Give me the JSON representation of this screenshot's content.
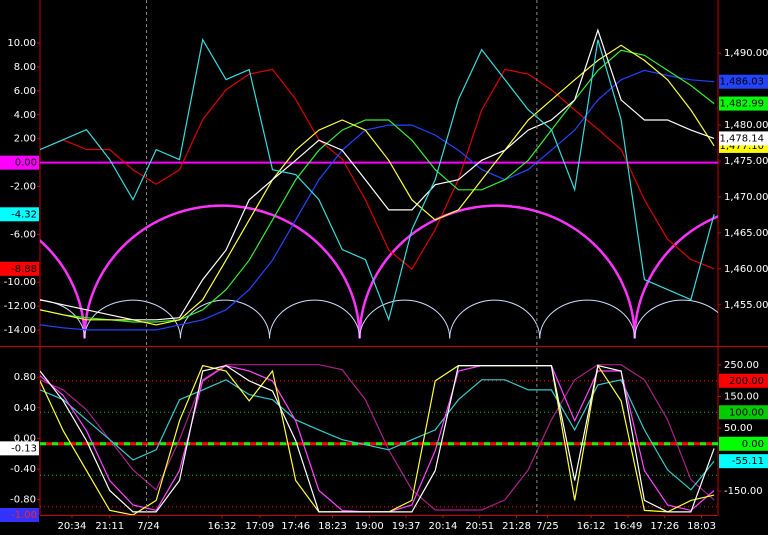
{
  "chart_data": [
    {
      "type": "line",
      "xlim": [
        0,
        700
      ],
      "x": [
        0,
        24,
        48,
        72,
        96,
        120,
        144,
        168,
        192,
        216,
        240,
        264,
        288,
        312,
        336,
        360,
        384,
        408,
        432,
        456,
        480,
        504,
        528,
        552,
        576,
        600,
        624,
        648,
        672,
        696
      ],
      "ylim": [
        -15.25,
        13.6
      ],
      "y2lim": [
        1449.4,
        1497.4
      ],
      "yticks": [
        {
          "value": 10,
          "label": "10.00"
        },
        {
          "value": 8,
          "label": "8.00"
        },
        {
          "value": 6,
          "label": "6.00"
        },
        {
          "value": 4,
          "label": "4.00"
        },
        {
          "value": 2,
          "label": "2.00"
        },
        {
          "value": -2,
          "label": "-2.00"
        },
        {
          "value": -6,
          "label": "-6.00"
        },
        {
          "value": -10,
          "label": "-10.00"
        },
        {
          "value": -12,
          "label": "-12.00"
        },
        {
          "value": -14,
          "label": "-14.00"
        }
      ],
      "y2ticks": [
        {
          "value": 1490,
          "label": "1,490.00"
        },
        {
          "value": 1480,
          "label": "1,480.00"
        },
        {
          "value": 1475,
          "label": "1,475.00"
        },
        {
          "value": 1470,
          "label": "1,470.00"
        },
        {
          "value": 1465,
          "label": "1,465.00"
        },
        {
          "value": 1460,
          "label": "1,460.00"
        },
        {
          "value": 1455,
          "label": "1,455.00"
        }
      ],
      "hlines": [
        {
          "value": 0,
          "color": "#ff00ff",
          "line_width": 2
        }
      ],
      "cycles": [
        {
          "color": "#ff33ff",
          "line_width": 2.5,
          "troughs": [
            46,
            330,
            614
          ],
          "peak": -3.6,
          "floor": -14.7
        },
        {
          "color": "#ccddff",
          "line_width": 1,
          "troughs": [
            46,
            145,
            237,
            330,
            423,
            516,
            614
          ],
          "peak": -11.5,
          "floor": -14.7
        }
      ],
      "series": [
        {
          "color": "#dd0000",
          "axis": "y",
          "values": [
            1.1,
            1.9,
            1.1,
            1.1,
            -0.6,
            -1.8,
            -0.6,
            3.6,
            6.1,
            7.4,
            7.8,
            5.3,
            1.9,
            0.3,
            -3.1,
            -7.3,
            -8.9,
            -5.6,
            -1.4,
            4.4,
            7.8,
            7.4,
            6.1,
            4.4,
            2.8,
            1.1,
            -3.1,
            -6.4,
            -8.1,
            -8.88
          ]
        },
        {
          "color": "#2244ff",
          "axis": "y2",
          "values": [
            1452.2,
            1451.8,
            1451.5,
            1451.5,
            1451.5,
            1451.5,
            1452.2,
            1452.9,
            1454.3,
            1457.1,
            1461.2,
            1466.8,
            1472.4,
            1476.5,
            1479.3,
            1480.0,
            1480.0,
            1478.6,
            1476.5,
            1473.8,
            1472.4,
            1473.8,
            1476.5,
            1479.3,
            1483.5,
            1486.3,
            1487.6,
            1486.9,
            1486.3,
            1486.03
          ]
        },
        {
          "color": "#33ee33",
          "axis": "y2",
          "values": [
            1454.3,
            1453.6,
            1453.2,
            1452.9,
            1452.6,
            1452.6,
            1452.9,
            1454.3,
            1457.1,
            1461.2,
            1466.8,
            1472.4,
            1476.5,
            1479.3,
            1480.7,
            1480.7,
            1477.9,
            1473.8,
            1471.0,
            1471.0,
            1472.4,
            1475.1,
            1479.3,
            1483.5,
            1487.6,
            1490.4,
            1489.7,
            1487.6,
            1485.5,
            1482.99
          ]
        },
        {
          "color": "#ffff33",
          "axis": "y2",
          "values": [
            1454.3,
            1453.6,
            1452.9,
            1452.9,
            1452.9,
            1452.2,
            1452.9,
            1455.7,
            1461.2,
            1466.8,
            1472.4,
            1476.5,
            1479.3,
            1480.7,
            1479.3,
            1475.1,
            1469.6,
            1466.8,
            1468.2,
            1472.4,
            1476.5,
            1480.7,
            1483.5,
            1486.3,
            1489.0,
            1491.1,
            1489.0,
            1486.3,
            1482.1,
            1477.1
          ]
        },
        {
          "color": "#ffffff",
          "axis": "y2",
          "values": [
            1455.7,
            1455.0,
            1454.3,
            1453.6,
            1452.9,
            1452.9,
            1453.2,
            1458.5,
            1462.6,
            1469.6,
            1472.4,
            1475.1,
            1477.9,
            1476.5,
            1472.4,
            1468.2,
            1468.2,
            1471.7,
            1472.4,
            1475.1,
            1476.5,
            1479.3,
            1480.7,
            1483.5,
            1493.2,
            1483.5,
            1480.7,
            1480.7,
            1479.3,
            1478.14
          ]
        },
        {
          "color": "#33dddd",
          "axis": "y",
          "values": [
            1.09,
            1.92,
            2.76,
            0.25,
            -3.09,
            1.09,
            0.25,
            10.28,
            6.94,
            7.78,
            -0.59,
            -1.0,
            -3.09,
            -7.27,
            -8.11,
            -13.13,
            -5.6,
            -1.42,
            5.27,
            9.45,
            6.94,
            4.43,
            2.76,
            -2.26,
            10.28,
            3.6,
            -9.78,
            -10.62,
            -11.46,
            -4.32
          ]
        }
      ],
      "markers": [
        {
          "axis": "y",
          "value": 0,
          "label": "0.00",
          "color": "#ff00ff",
          "text_color": "#000000"
        },
        {
          "axis": "y",
          "value": -4.32,
          "label": "-4.32",
          "color": "#00ffff",
          "text_color": "#000000"
        },
        {
          "axis": "y",
          "value": -8.88,
          "label": "-8.88",
          "color": "#ff0000",
          "text_color": "#000000"
        },
        {
          "axis": "y2",
          "value": 1486.03,
          "label": "1,486.03",
          "color": "#2244ff",
          "text_color": "#000000"
        },
        {
          "axis": "y2",
          "value": 1482.99,
          "label": "1,482.99",
          "color": "#00ff00",
          "text_color": "#000000"
        },
        {
          "axis": "y2",
          "value": 1477.1,
          "label": "1,477.10",
          "color": "#ffff00",
          "text_color": "#000000"
        },
        {
          "axis": "y2",
          "value": 1478.14,
          "label": "1,478.14",
          "color": "#ffffff",
          "text_color": "#000000"
        }
      ]
    },
    {
      "type": "line",
      "xlim": [
        0,
        700
      ],
      "x": [
        0,
        24,
        48,
        72,
        96,
        120,
        144,
        168,
        192,
        216,
        240,
        264,
        288,
        312,
        336,
        360,
        384,
        408,
        432,
        456,
        480,
        504,
        528,
        552,
        576,
        600,
        624,
        648,
        672,
        696
      ],
      "ylim": [
        -1.0,
        1.18
      ],
      "y2lim": [
        -226,
        304
      ],
      "yticks": [
        {
          "value": 0.8,
          "label": "0.80"
        },
        {
          "value": 0.4,
          "label": "0.40"
        },
        {
          "value": 0,
          "label": "0.00"
        },
        {
          "value": -0.4,
          "label": "-0.40"
        },
        {
          "value": -0.8,
          "label": "-0.80"
        }
      ],
      "y2ticks": [
        {
          "value": 250,
          "label": "250.00"
        },
        {
          "value": 150,
          "label": "150.00"
        },
        {
          "value": 50,
          "label": "50.00"
        },
        {
          "value": -150,
          "label": "-150.00"
        }
      ],
      "xticks": [
        {
          "value": 33,
          "label": "20:34"
        },
        {
          "value": 72,
          "label": "21:11"
        },
        {
          "value": 112,
          "label": "7/24"
        },
        {
          "value": 188,
          "label": "16:32"
        },
        {
          "value": 227,
          "label": "17:09"
        },
        {
          "value": 264,
          "label": "17:46"
        },
        {
          "value": 302,
          "label": "18:23"
        },
        {
          "value": 340,
          "label": "19:00"
        },
        {
          "value": 378,
          "label": "19:37"
        },
        {
          "value": 416,
          "label": "20:14"
        },
        {
          "value": 454,
          "label": "20:51"
        },
        {
          "value": 492,
          "label": "21:28"
        },
        {
          "value": 524,
          "label": "7/25"
        },
        {
          "value": 569,
          "label": "16:12"
        },
        {
          "value": 607,
          "label": "16:49"
        },
        {
          "value": 645,
          "label": "17:26"
        },
        {
          "value": 683,
          "label": "18:03"
        }
      ],
      "x_separators": [
        110,
        513
      ],
      "hlines": [
        {
          "value": 200,
          "color": "#ff0000",
          "line_width": 1,
          "label": "200.00",
          "text_color": "#000000"
        },
        {
          "value": 100,
          "color": "#00cc00",
          "line_width": 1,
          "label": "100.00",
          "text_color": "#000000"
        },
        {
          "value": 0,
          "color": "#00ff00",
          "line_width": 3,
          "label": "0.00",
          "text_color": "#000000"
        },
        {
          "value": -100,
          "color": "#00cc00",
          "line_width": 1
        },
        {
          "value": -200,
          "color": "#ff0000",
          "line_width": 1
        }
      ],
      "series": [
        {
          "color": "#aa2288",
          "axis": "y2",
          "values": [
            203,
            171,
            108,
            13,
            -83,
            -146,
            13,
            203,
            251,
            251,
            251,
            251,
            251,
            235,
            140,
            -19,
            -146,
            -210,
            -210,
            -210,
            -178,
            -83,
            76,
            203,
            251,
            251,
            203,
            76,
            -114,
            -178
          ]
        },
        {
          "color": "#33cccc",
          "axis": "y2",
          "values": [
            171,
            140,
            76,
            13,
            -51,
            -19,
            140,
            171,
            203,
            156,
            140,
            76,
            44,
            13,
            -3,
            -19,
            13,
            44,
            140,
            203,
            203,
            171,
            171,
            44,
            187,
            203,
            44,
            -83,
            -146,
            -55.11
          ]
        },
        {
          "color": "#ff44ff",
          "axis": "y",
          "values": [
            0.82,
            0.56,
            0.1,
            -0.55,
            -0.87,
            -0.94,
            -0.42,
            0.75,
            0.95,
            0.88,
            0.75,
            0.23,
            -0.68,
            -0.94,
            -0.96,
            -0.96,
            -0.87,
            -0.16,
            0.88,
            0.95,
            0.95,
            0.95,
            0.95,
            0.23,
            0.88,
            0.88,
            -0.42,
            -0.87,
            -0.94,
            -0.68
          ]
        },
        {
          "color": "#ffff33",
          "axis": "y",
          "values": [
            0.75,
            0.1,
            -0.42,
            -0.94,
            -1.0,
            -0.81,
            0.23,
            0.95,
            0.88,
            0.49,
            0.88,
            -0.55,
            -0.96,
            -0.96,
            -0.96,
            -0.96,
            -0.81,
            0.75,
            0.95,
            0.95,
            0.95,
            0.95,
            0.95,
            -0.81,
            0.95,
            0.49,
            -0.94,
            -0.96,
            -0.81,
            -0.74
          ]
        },
        {
          "color": "#ffffff",
          "axis": "y",
          "values": [
            0.88,
            0.49,
            -0.03,
            -0.68,
            -0.96,
            -0.96,
            -0.55,
            0.88,
            0.95,
            0.75,
            0.62,
            -0.03,
            -0.96,
            -0.96,
            -0.96,
            -0.96,
            -0.96,
            -0.42,
            0.95,
            0.95,
            0.95,
            0.95,
            0.95,
            -0.55,
            0.95,
            0.88,
            -0.81,
            -0.96,
            -0.96,
            -0.13
          ]
        }
      ],
      "markers": [
        {
          "axis": "y",
          "value": -0.13,
          "label": "-0.13",
          "color": "#ffffff",
          "text_color": "#000000"
        },
        {
          "axis": "y",
          "value": -1.0,
          "label": "-1.00",
          "color": "#3333ff",
          "text_color": "#ff2222"
        },
        {
          "axis": "y2",
          "value": -55.11,
          "label": "-55.11",
          "color": "#00ffff",
          "text_color": "#000000"
        }
      ]
    }
  ]
}
